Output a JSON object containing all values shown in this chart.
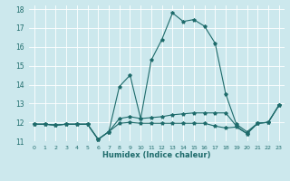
{
  "xlabel": "Humidex (Indice chaleur)",
  "bg_color": "#cce8ed",
  "line_color": "#1e6b6b",
  "grid_color": "#ffffff",
  "xlim": [
    -0.5,
    23.5
  ],
  "ylim": [
    11,
    18.2
  ],
  "xticks": [
    0,
    1,
    2,
    3,
    4,
    5,
    6,
    7,
    8,
    9,
    10,
    11,
    12,
    13,
    14,
    15,
    16,
    17,
    18,
    19,
    20,
    21,
    22,
    23
  ],
  "yticks": [
    11,
    12,
    13,
    14,
    15,
    16,
    17,
    18
  ],
  "series": [
    [
      11.9,
      11.9,
      11.85,
      11.9,
      11.9,
      11.9,
      11.1,
      11.5,
      13.9,
      14.5,
      12.2,
      15.3,
      16.4,
      17.8,
      17.35,
      17.45,
      17.1,
      16.2,
      13.5,
      11.9,
      11.5,
      11.95,
      12.0,
      12.9
    ],
    [
      11.9,
      11.9,
      11.85,
      11.9,
      11.9,
      11.9,
      11.1,
      11.5,
      12.2,
      12.3,
      12.2,
      12.25,
      12.3,
      12.4,
      12.45,
      12.5,
      12.5,
      12.5,
      12.5,
      11.8,
      11.4,
      11.95,
      12.0,
      12.9
    ],
    [
      11.9,
      11.9,
      11.85,
      11.9,
      11.9,
      11.9,
      11.1,
      11.5,
      11.95,
      12.0,
      11.95,
      11.95,
      11.95,
      11.95,
      11.95,
      11.95,
      11.95,
      11.8,
      11.7,
      11.75,
      11.4,
      11.95,
      12.0,
      12.9
    ]
  ]
}
